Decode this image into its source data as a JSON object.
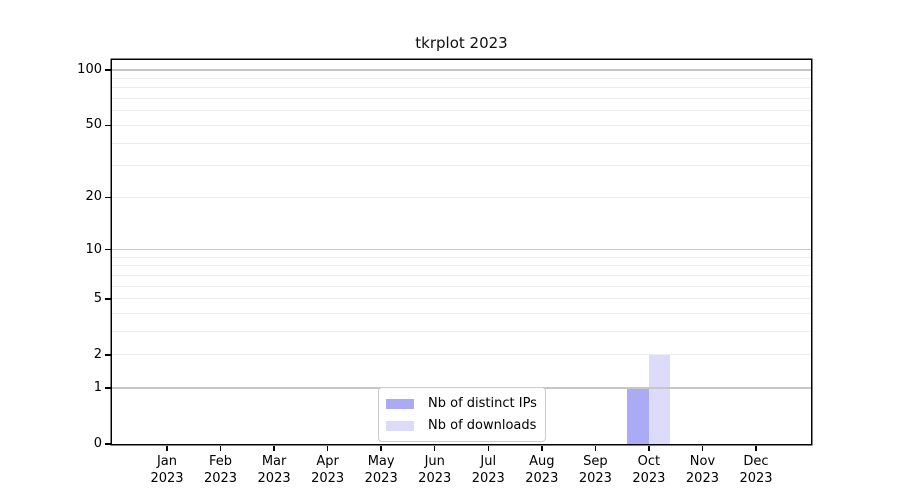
{
  "chart_data": {
    "type": "bar",
    "title": "tkrplot 2023",
    "x_axis": {
      "categories": [
        "Jan",
        "Feb",
        "Mar",
        "Apr",
        "May",
        "Jun",
        "Jul",
        "Aug",
        "Sep",
        "Oct",
        "Nov",
        "Dec"
      ],
      "year_label": "2023"
    },
    "y_axis": {
      "scale": "log1p",
      "ticks": [
        0,
        1,
        2,
        5,
        10,
        20,
        50,
        100
      ],
      "major_gridlines": [
        1,
        10,
        100
      ],
      "minor_gridlines": [
        2,
        3,
        4,
        5,
        6,
        7,
        8,
        9,
        20,
        30,
        40,
        50,
        60,
        70,
        80,
        90
      ],
      "ylim": [
        0,
        113.3
      ]
    },
    "series": [
      {
        "name": "Nb of distinct IPs",
        "color": "#aaaaf5",
        "values": [
          0,
          0,
          0,
          0,
          0,
          0,
          0,
          0,
          0,
          1,
          0,
          0
        ]
      },
      {
        "name": "Nb of downloads",
        "color": "#dcdcfa",
        "values": [
          0,
          0,
          0,
          0,
          0,
          0,
          0,
          0,
          0,
          2,
          0,
          0
        ]
      }
    ],
    "legend": {
      "items": [
        "Nb of distinct IPs",
        "Nb of downloads"
      ],
      "position": "bottom-center"
    },
    "grid": "horizontal",
    "colors": {
      "background": "#ffffff",
      "axis": "#000000",
      "major_grid": "#c6c6c6",
      "minor_grid": "#ececec",
      "bar_distinct_ips": "#aaaaf5",
      "bar_downloads": "#dcdcfa",
      "text": "#000000"
    }
  }
}
